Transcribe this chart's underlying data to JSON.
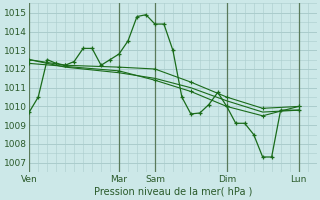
{
  "bg_color": "#cce8e8",
  "plot_bg_color": "#cce8e8",
  "grid_color": "#aacccc",
  "line_color": "#1a6b1a",
  "vline_color": "#5a7a5a",
  "xlabel": "Pression niveau de la mer( hPa )",
  "ylim": [
    1006.5,
    1015.5
  ],
  "yticks": [
    1007,
    1008,
    1009,
    1010,
    1011,
    1012,
    1013,
    1014,
    1015
  ],
  "day_labels": [
    "Ven",
    "Mar",
    "Sam",
    "Dim",
    "Lun"
  ],
  "day_x": [
    0,
    60,
    84,
    132,
    180
  ],
  "xlim": [
    0,
    192
  ],
  "series1_x": [
    0,
    6,
    12,
    18,
    24,
    30,
    36,
    42,
    48,
    54,
    60,
    66,
    72,
    78,
    84,
    90,
    96,
    102,
    108,
    114,
    120,
    126,
    132,
    138,
    144,
    150,
    156,
    162,
    168,
    180
  ],
  "series1_y": [
    1009.7,
    1010.5,
    1012.5,
    1012.3,
    1012.2,
    1012.4,
    1013.1,
    1013.1,
    1012.2,
    1012.5,
    1012.8,
    1013.5,
    1014.8,
    1014.9,
    1014.4,
    1014.4,
    1013.0,
    1010.5,
    1009.6,
    1009.65,
    1010.1,
    1010.75,
    1010.0,
    1009.1,
    1009.1,
    1008.5,
    1007.3,
    1007.3,
    1009.8,
    1009.8
  ],
  "series2_x": [
    0,
    24,
    60,
    84,
    108,
    132,
    156,
    180
  ],
  "series2_y": [
    1012.5,
    1012.2,
    1012.1,
    1012.0,
    1011.3,
    1010.5,
    1009.9,
    1010.0
  ],
  "series3_x": [
    0,
    24,
    60,
    84,
    108,
    132,
    156,
    180
  ],
  "series3_y": [
    1012.5,
    1012.1,
    1011.8,
    1011.5,
    1011.0,
    1010.3,
    1009.7,
    1009.8
  ],
  "series4_x": [
    0,
    60,
    84,
    108,
    132,
    156,
    180
  ],
  "series4_y": [
    1012.3,
    1011.9,
    1011.4,
    1010.8,
    1010.0,
    1009.5,
    1010.0
  ]
}
